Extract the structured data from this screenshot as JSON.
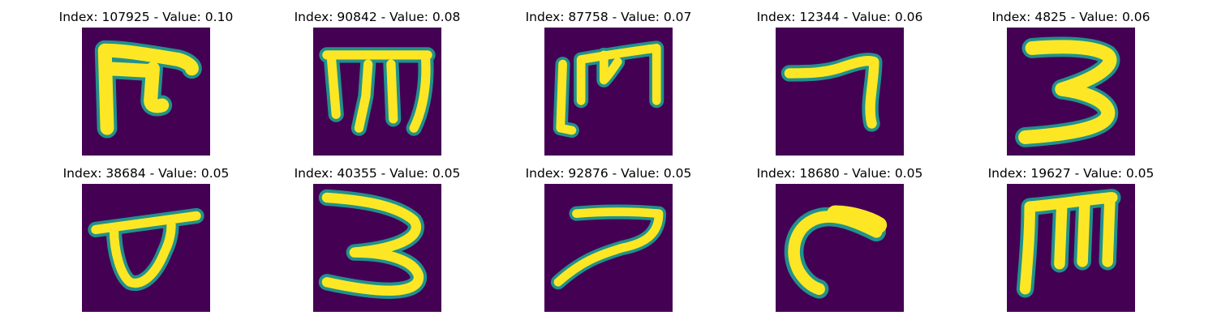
{
  "colors": {
    "background": "#440154",
    "edge_dark": "#31688e",
    "edge_mid": "#21918c",
    "edge_light": "#5ec962",
    "stroke": "#fde725"
  },
  "samples": [
    {
      "title": "Index: 107925 - Value: 0.10",
      "glyph": "inverted-t-hook"
    },
    {
      "title": "Index: 90842 - Value: 0.08",
      "glyph": "m-with-bar"
    },
    {
      "title": "Index: 87758 - Value: 0.07",
      "glyph": "bracket-m"
    },
    {
      "title": "Index: 12344 - Value: 0.06",
      "glyph": "seven-stroke"
    },
    {
      "title": "Index: 4825 - Value: 0.06",
      "glyph": "digit-three"
    },
    {
      "title": "Index: 38684 - Value: 0.05",
      "glyph": "crossed-loop"
    },
    {
      "title": "Index: 40355 - Value: 0.05",
      "glyph": "digit-three"
    },
    {
      "title": "Index: 92876 - Value: 0.05",
      "glyph": "seven-stroke"
    },
    {
      "title": "Index: 18680 - Value: 0.05",
      "glyph": "c-curve"
    },
    {
      "title": "Index: 19627 - Value: 0.05",
      "glyph": "e-rotated"
    }
  ]
}
